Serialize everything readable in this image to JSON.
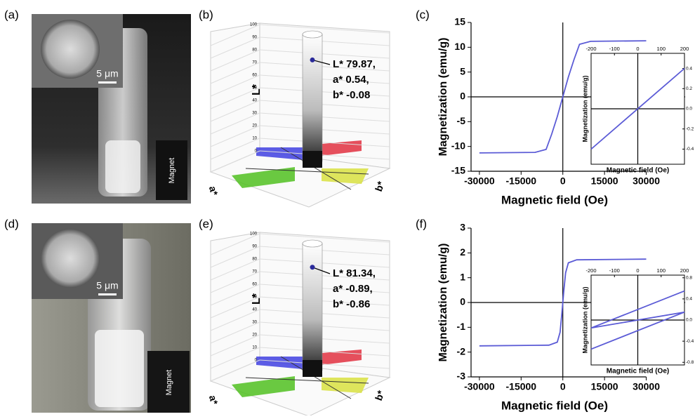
{
  "panel_labels": [
    "(a)",
    "(b)",
    "(c)",
    "(d)",
    "(e)",
    "(f)"
  ],
  "photos": [
    {
      "scale_bar": "5 μm",
      "magnet": "Magnet"
    },
    {
      "scale_bar": "5 μm",
      "magnet": "Magnet"
    }
  ],
  "color_spaces": [
    {
      "axis_labels": [
        "L*",
        "a*",
        "b*"
      ],
      "lticks": [
        0,
        10,
        20,
        30,
        40,
        50,
        60,
        70,
        80,
        90,
        100
      ],
      "L": 79.87,
      "annotation": [
        "L* 79.87,",
        "a* 0.54,",
        "b* -0.08"
      ]
    },
    {
      "axis_labels": [
        "L*",
        "a*",
        "b*"
      ],
      "lticks": [
        0,
        10,
        20,
        30,
        40,
        50,
        60,
        70,
        80,
        90,
        100
      ],
      "L": 81.34,
      "annotation": [
        "L* 81.34,",
        "a* -0.89,",
        "b* -0.86"
      ]
    }
  ],
  "chart_data": [
    {
      "type": "line",
      "xlabel": "Magnetic field (Oe)",
      "ylabel": "Magnetization (emu/g)",
      "xlim": [
        -33000,
        44000
      ],
      "ylim": [
        -15,
        15
      ],
      "xticks": [
        -30000,
        -15000,
        0,
        15000,
        30000
      ],
      "yticks": [
        -15,
        -10,
        -5,
        0,
        5,
        10,
        15
      ],
      "series": [
        {
          "color": "#5b5bd6",
          "x": [
            -30000,
            -10000,
            -6000,
            -4000,
            -2000,
            0,
            2000,
            4000,
            6000,
            10000,
            30000
          ],
          "values": [
            -11.3,
            -11.2,
            -10.6,
            -7.5,
            -4,
            0,
            4,
            7.5,
            10.6,
            11.2,
            11.3
          ]
        }
      ]
    },
    {
      "type": "line",
      "xlabel": "Magnetic field (Oe)",
      "ylabel": "Magnetization (emu/g)",
      "xlim": [
        -200,
        200
      ],
      "ylim": [
        -0.55,
        0.55
      ],
      "xticks": [
        -200,
        -100,
        0,
        100,
        200
      ],
      "yticks": [
        -0.4,
        -0.2,
        {
          "value": 0,
          "label": "0.0"
        },
        0.2,
        0.4
      ],
      "series": [
        {
          "color": "#5b5bd6",
          "x": [
            -200,
            200
          ],
          "values": [
            -0.4,
            0.4
          ]
        }
      ]
    },
    {
      "type": "line",
      "xlabel": "Magnetic field (Oe)",
      "ylabel": "Magnetization (emu/g)",
      "xlim": [
        -33000,
        44000
      ],
      "ylim": [
        -3,
        3
      ],
      "xticks": [
        -30000,
        -15000,
        0,
        15000,
        30000
      ],
      "yticks": [
        -3,
        -2,
        -1,
        0,
        1,
        2,
        3
      ],
      "series": [
        {
          "color": "#5b5bd6",
          "x": [
            -30000,
            -5000,
            -2000,
            -1000,
            -300,
            0,
            300,
            1000,
            2000,
            5000,
            30000
          ],
          "values": [
            -1.75,
            -1.72,
            -1.6,
            -1.2,
            -0.4,
            0,
            0.4,
            1.2,
            1.6,
            1.72,
            1.75
          ]
        }
      ]
    },
    {
      "type": "line",
      "xlabel": "Magnetic field (Oe)",
      "ylabel": "Magnetization (emu/g)",
      "xlim": [
        -200,
        200
      ],
      "ylim": [
        -0.85,
        0.85
      ],
      "xticks": [
        -200,
        -100,
        0,
        100,
        200
      ],
      "yticks": [
        -0.8,
        -0.4,
        {
          "value": 0,
          "label": "0.0"
        },
        0.4,
        0.8
      ],
      "series": [
        {
          "color": "#5b5bd6",
          "x": [
            -200,
            200,
            -200,
            200
          ],
          "values": [
            -0.55,
            0.15,
            -0.15,
            0.55
          ]
        }
      ]
    }
  ]
}
